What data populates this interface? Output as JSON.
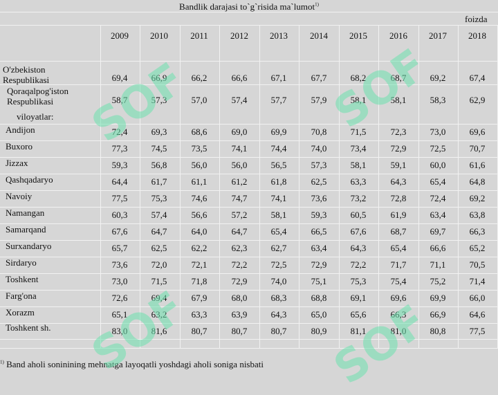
{
  "title": "Bandlik darajasi to`g`risida ma`lumot",
  "title_sup": "1)",
  "unit": "foizda",
  "years": [
    "2009",
    "2010",
    "2011",
    "2012",
    "2013",
    "2014",
    "2015",
    "2016",
    "2017",
    "2018"
  ],
  "rows": [
    {
      "label": "O'zbekiston Respublikasi",
      "values": [
        "69,4",
        "66,9",
        "66,2",
        "66,6",
        "67,1",
        "67,7",
        "68,2",
        "68,7",
        "69,2",
        "67,4"
      ]
    },
    {
      "label": "Qoraqalpog'iston Respublikasi",
      "values": [
        "58,7",
        "57,3",
        "57,0",
        "57,4",
        "57,7",
        "57,9",
        "58,1",
        "58,1",
        "58,3",
        "62,9"
      ]
    },
    {
      "label": "viloyatlar:",
      "values": []
    },
    {
      "label": "Andijon",
      "values": [
        "72,4",
        "69,3",
        "68,6",
        "69,0",
        "69,9",
        "70,8",
        "71,5",
        "72,3",
        "73,0",
        "69,6"
      ]
    },
    {
      "label": "Buxoro",
      "values": [
        "77,3",
        "74,5",
        "73,5",
        "74,1",
        "74,4",
        "74,0",
        "73,4",
        "72,9",
        "72,5",
        "70,7"
      ]
    },
    {
      "label": "Jizzax",
      "values": [
        "59,3",
        "56,8",
        "56,0",
        "56,0",
        "56,5",
        "57,3",
        "58,1",
        "59,1",
        "60,0",
        "61,6"
      ]
    },
    {
      "label": "Qashqadaryo",
      "values": [
        "64,4",
        "61,7",
        "61,1",
        "61,2",
        "61,8",
        "62,5",
        "63,3",
        "64,3",
        "65,4",
        "64,8"
      ]
    },
    {
      "label": "Navoiy",
      "values": [
        "77,5",
        "75,3",
        "74,6",
        "74,7",
        "74,1",
        "73,6",
        "73,2",
        "72,8",
        "72,4",
        "69,2"
      ]
    },
    {
      "label": "Namangan",
      "values": [
        "60,3",
        "57,4",
        "56,6",
        "57,2",
        "58,1",
        "59,3",
        "60,5",
        "61,9",
        "63,4",
        "63,8"
      ]
    },
    {
      "label": "Samarqand",
      "values": [
        "67,6",
        "64,7",
        "64,0",
        "64,7",
        "65,4",
        "66,5",
        "67,6",
        "68,7",
        "69,7",
        "66,3"
      ]
    },
    {
      "label": "Surxandaryo",
      "values": [
        "65,7",
        "62,5",
        "62,2",
        "62,3",
        "62,7",
        "63,4",
        "64,3",
        "65,4",
        "66,6",
        "65,2"
      ]
    },
    {
      "label": "Sirdaryo",
      "values": [
        "73,6",
        "72,0",
        "72,1",
        "72,2",
        "72,5",
        "72,9",
        "72,2",
        "71,7",
        "71,1",
        "70,5"
      ]
    },
    {
      "label": "Toshkent",
      "values": [
        "73,0",
        "71,5",
        "71,8",
        "72,9",
        "74,0",
        "75,1",
        "75,3",
        "75,4",
        "75,2",
        "71,4"
      ]
    },
    {
      "label": "Farg'ona",
      "values": [
        "72,6",
        "69,4",
        "67,9",
        "68,0",
        "68,3",
        "68,8",
        "69,1",
        "69,6",
        "69,9",
        "66,0"
      ]
    },
    {
      "label": "Xorazm",
      "values": [
        "65,1",
        "63,2",
        "63,3",
        "63,9",
        "64,3",
        "65,0",
        "65,6",
        "66,3",
        "66,9",
        "64,6"
      ]
    },
    {
      "label": "Toshkent sh.",
      "values": [
        "83,0",
        "81,6",
        "80,7",
        "80,7",
        "80,7",
        "80,9",
        "81,1",
        "81,0",
        "80,8",
        "77,5"
      ]
    }
  ],
  "footnote_sup": "1)",
  "footnote": "Band aholi soninining mehnatga layoqatli yoshdagi aholi soniga nisbati",
  "watermark_text": "SOF"
}
